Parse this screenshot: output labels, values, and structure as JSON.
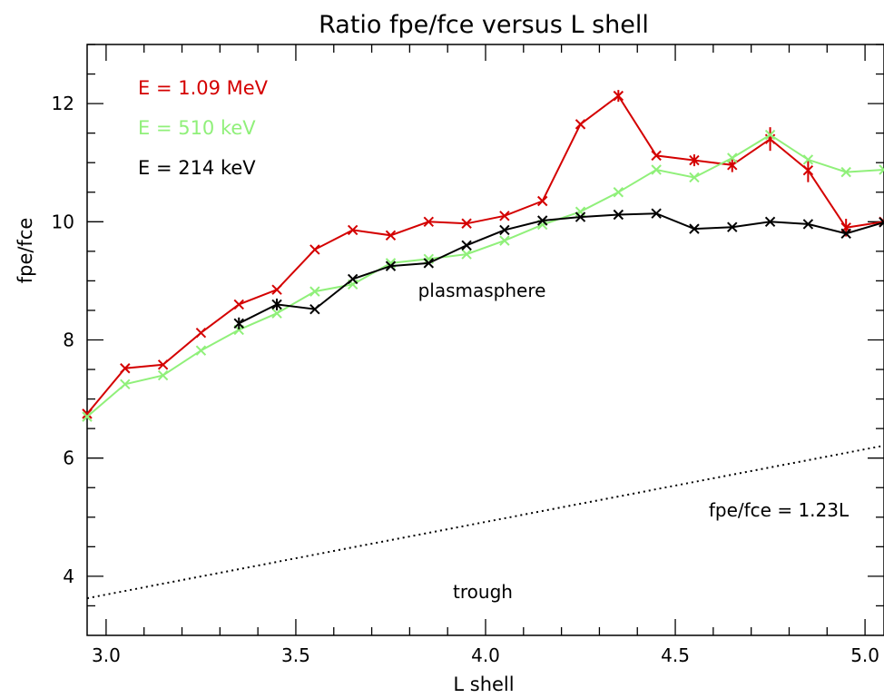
{
  "chart_data": {
    "type": "line",
    "title": "Ratio fpe/fce versus L shell",
    "xlabel": "L shell",
    "ylabel": "fpe/fce",
    "xlim": [
      2.95,
      5.05
    ],
    "ylim": [
      3.0,
      13.0
    ],
    "x_ticks": [
      3.0,
      3.5,
      4.0,
      4.5,
      5.0
    ],
    "x_tick_labels": [
      "3.0",
      "3.5",
      "4.0",
      "4.5",
      "5.0"
    ],
    "y_ticks": [
      4,
      6,
      8,
      10,
      12
    ],
    "y_tick_labels": [
      "4",
      "6",
      "8",
      "10",
      "12"
    ],
    "grid": false,
    "legend_placement": "top-left",
    "series": [
      {
        "name": "E = 1.09 MeV",
        "color": "#d40000",
        "x": [
          2.95,
          3.05,
          3.15,
          3.25,
          3.35,
          3.45,
          3.55,
          3.65,
          3.75,
          3.85,
          3.95,
          4.05,
          4.15,
          4.25,
          4.35,
          4.45,
          4.55,
          4.65,
          4.75,
          4.85,
          4.95,
          5.05
        ],
        "values": [
          6.75,
          7.52,
          7.58,
          8.12,
          8.6,
          8.85,
          9.53,
          9.86,
          9.77,
          10.0,
          9.97,
          10.1,
          10.35,
          11.65,
          12.13,
          11.12,
          11.04,
          10.96,
          11.4,
          10.87,
          9.9,
          10.0
        ],
        "err": [
          0,
          0,
          0,
          0,
          0,
          0,
          0,
          0,
          0,
          0,
          0,
          0,
          0,
          0,
          0.1,
          0,
          0.1,
          0.12,
          0.2,
          0.2,
          0.15,
          0
        ]
      },
      {
        "name": "E = 510 keV",
        "color": "#90f07a",
        "x": [
          2.95,
          3.05,
          3.15,
          3.25,
          3.35,
          3.45,
          3.55,
          3.65,
          3.75,
          3.85,
          3.95,
          4.05,
          4.15,
          4.25,
          4.35,
          4.45,
          4.55,
          4.65,
          4.75,
          4.85,
          4.95,
          5.05
        ],
        "values": [
          6.7,
          7.25,
          7.4,
          7.82,
          8.17,
          8.45,
          8.82,
          8.94,
          9.3,
          9.37,
          9.45,
          9.68,
          9.95,
          10.17,
          10.5,
          10.88,
          10.75,
          11.08,
          11.47,
          11.05,
          10.84,
          10.88
        ],
        "err": [
          0,
          0,
          0,
          0,
          0,
          0,
          0,
          0,
          0,
          0,
          0,
          0,
          0,
          0,
          0,
          0,
          0,
          0,
          0,
          0,
          0,
          0
        ]
      },
      {
        "name": "E = 214 keV",
        "color": "#000000",
        "x": [
          3.35,
          3.45,
          3.55,
          3.65,
          3.75,
          3.85,
          3.95,
          4.05,
          4.15,
          4.25,
          4.35,
          4.45,
          4.55,
          4.65,
          4.75,
          4.85,
          4.95,
          5.05
        ],
        "values": [
          8.28,
          8.6,
          8.52,
          9.03,
          9.25,
          9.3,
          9.6,
          9.86,
          10.02,
          10.08,
          10.12,
          10.14,
          9.88,
          9.91,
          10.0,
          9.96,
          9.8,
          9.99
        ],
        "err": [
          0.1,
          0.1,
          0,
          0,
          0,
          0,
          0,
          0,
          0,
          0,
          0,
          0,
          0,
          0,
          0,
          0,
          0,
          0
        ]
      }
    ],
    "reference_line": {
      "label": "fpe/fce = 1.23L",
      "slope": 1.23,
      "style": "dotted",
      "color": "#000000"
    },
    "annotations": {
      "plasmasphere": "plasmasphere",
      "trough": "trough",
      "formula": "fpe/fce = 1.23L"
    }
  }
}
